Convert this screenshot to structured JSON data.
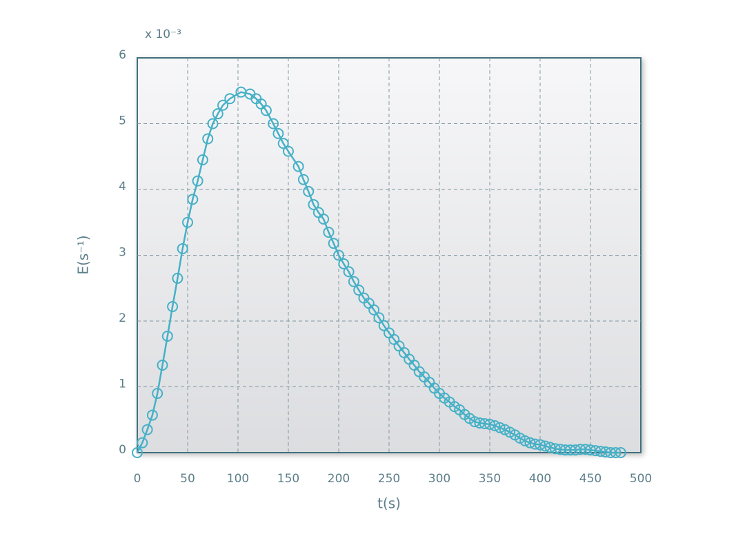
{
  "chart_data": {
    "type": "line",
    "xlabel": "t(s)",
    "ylabel": "E(s⁻¹)",
    "annotation": "x 10⁻³",
    "x": [
      0,
      5,
      10,
      15,
      20,
      25,
      30,
      35,
      40,
      45,
      50,
      55,
      60,
      65,
      70,
      75,
      80,
      85,
      92,
      103,
      112,
      118,
      123,
      128,
      135,
      140,
      145,
      150,
      160,
      165,
      170,
      175,
      180,
      185,
      190,
      195,
      200,
      205,
      210,
      215,
      220,
      225,
      230,
      235,
      240,
      245,
      250,
      255,
      260,
      265,
      270,
      275,
      280,
      285,
      290,
      295,
      300,
      305,
      310,
      315,
      320,
      325,
      330,
      335,
      340,
      345,
      350,
      355,
      360,
      365,
      370,
      375,
      380,
      385,
      390,
      395,
      400,
      405,
      410,
      415,
      420,
      425,
      430,
      435,
      440,
      445,
      450,
      455,
      460,
      465,
      470,
      475,
      480
    ],
    "series": [
      {
        "color": "#45b0c6",
        "values": [
          0,
          0.15,
          0.35,
          0.57,
          0.9,
          1.33,
          1.77,
          2.22,
          2.65,
          3.1,
          3.5,
          3.85,
          4.13,
          4.45,
          4.77,
          5.0,
          5.15,
          5.28,
          5.38,
          5.48,
          5.45,
          5.38,
          5.3,
          5.2,
          5.0,
          4.85,
          4.7,
          4.58,
          4.35,
          4.15,
          3.97,
          3.77,
          3.65,
          3.55,
          3.35,
          3.18,
          3.0,
          2.87,
          2.75,
          2.6,
          2.47,
          2.35,
          2.27,
          2.17,
          2.05,
          1.93,
          1.82,
          1.72,
          1.62,
          1.52,
          1.42,
          1.33,
          1.23,
          1.15,
          1.07,
          0.98,
          0.9,
          0.83,
          0.77,
          0.7,
          0.65,
          0.58,
          0.52,
          0.47,
          0.45,
          0.44,
          0.43,
          0.41,
          0.38,
          0.35,
          0.31,
          0.27,
          0.22,
          0.18,
          0.15,
          0.13,
          0.12,
          0.1,
          0.08,
          0.06,
          0.05,
          0.04,
          0.04,
          0.04,
          0.05,
          0.05,
          0.04,
          0.03,
          0.02,
          0.01,
          0,
          0,
          0
        ]
      }
    ],
    "xlim": [
      0,
      500
    ],
    "xticks": [
      0,
      50,
      100,
      150,
      200,
      250,
      300,
      350,
      400,
      450,
      500
    ],
    "ylim": [
      0,
      6
    ],
    "yticks": [
      0,
      1,
      2,
      3,
      4,
      5,
      6
    ],
    "grid": true
  }
}
